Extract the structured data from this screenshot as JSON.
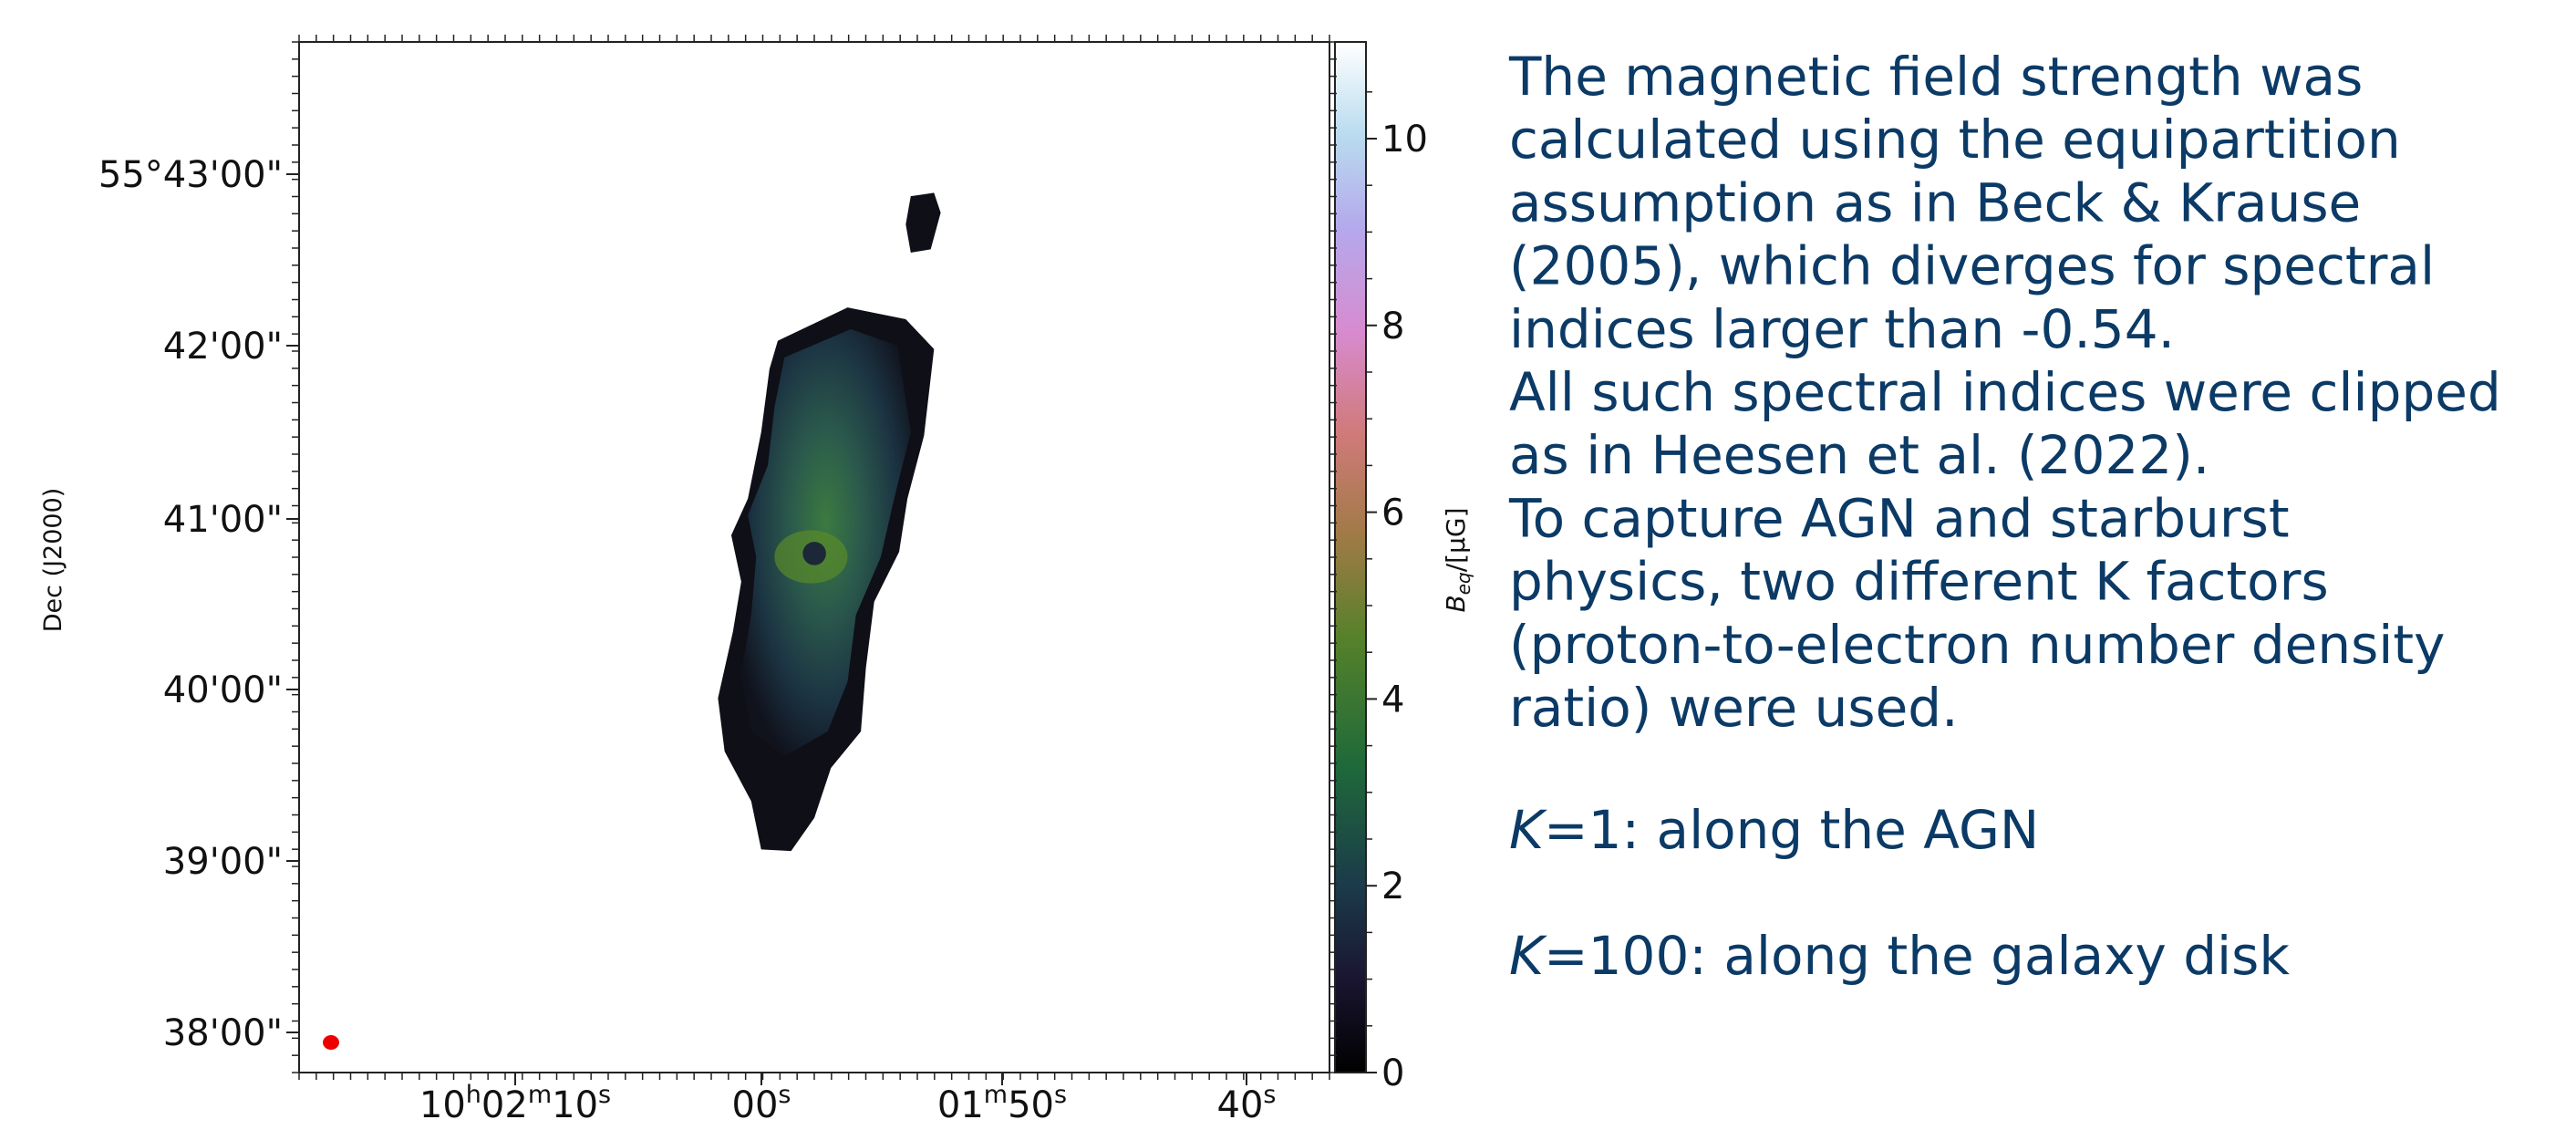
{
  "figure": {
    "dec_axis_label": "Dec (J2000)",
    "dec_ticks": [
      "55°43'00\"",
      "42'00\"",
      "41'00\"",
      "40'00\"",
      "39'00\"",
      "38'00\""
    ],
    "ra_ticks": [
      [
        "10",
        "h",
        "02",
        "m",
        "10",
        "s"
      ],
      [
        "00",
        "s"
      ],
      [
        "01",
        "m",
        "50",
        "s"
      ],
      [
        "40",
        "s"
      ]
    ],
    "colorbar_label": {
      "symbol": "B",
      "subscript": "eq",
      "unit": "/[μG]"
    },
    "colorbar_ticks": [
      "0",
      "2",
      "4",
      "6",
      "8",
      "10"
    ]
  },
  "text": {
    "lines": [
      "The magnetic field strength was",
      "calculated using the equipartition",
      "assumption as in Beck & Krause",
      "(2005), which diverges for spectral",
      "indices larger than -0.54.",
      "All such spectral indices were clipped",
      "as in Heesen et al. (2022).",
      "To capture AGN and starburst",
      "physics, two different K factors",
      "(proton-to-electron number density",
      "ratio) were used."
    ],
    "k_items": [
      {
        "symbol": "K",
        "text": "=1: along the AGN"
      },
      {
        "symbol": "K",
        "text": "=100: along the galaxy disk"
      }
    ]
  }
}
